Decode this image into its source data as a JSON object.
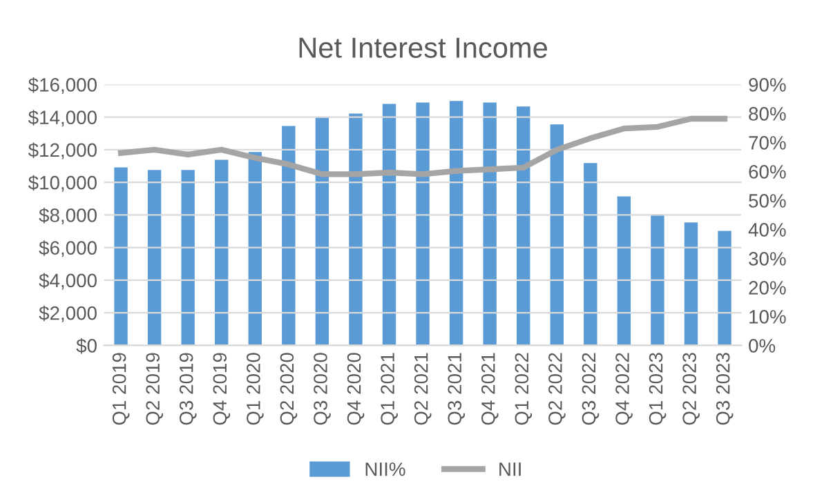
{
  "chart_data": {
    "type": "bar",
    "title": "Net Interest Income",
    "categories": [
      "Q1 2019",
      "Q2 2019",
      "Q3 2019",
      "Q4 2019",
      "Q1 2020",
      "Q2 2020",
      "Q3 2020",
      "Q4 2020",
      "Q1 2021",
      "Q2 2021",
      "Q3 2021",
      "Q4 2021",
      "Q1 2022",
      "Q2 2022",
      "Q3 2022",
      "Q4 2022",
      "Q1 2023",
      "Q2 2023",
      "Q3 2023"
    ],
    "series": [
      {
        "name": "NII%",
        "axis": "y2",
        "color": "#5b9bd5",
        "values": [
          61.4,
          60.5,
          60.5,
          64,
          66.7,
          75.7,
          78.6,
          80,
          83.3,
          83.8,
          84.3,
          83.8,
          82.4,
          76.2,
          62.9,
          51.4,
          45.2,
          42.4,
          39.5
        ]
      },
      {
        "name": "NII",
        "type": "line",
        "axis": "y",
        "color": "#a5a5a5",
        "values": [
          11800,
          12000,
          11700,
          12000,
          11500,
          11100,
          10500,
          10500,
          10600,
          10500,
          10700,
          10800,
          10900,
          12000,
          12700,
          13300,
          13400,
          13900,
          13900
        ]
      }
    ],
    "ylim": [
      0,
      16000
    ],
    "yticks": [
      {
        "value": 0,
        "label": "$0"
      },
      {
        "value": 2000,
        "label": "$2,000"
      },
      {
        "value": 4000,
        "label": "$4,000"
      },
      {
        "value": 6000,
        "label": "$6,000"
      },
      {
        "value": 8000,
        "label": "$8,000"
      },
      {
        "value": 10000,
        "label": "$10,000"
      },
      {
        "value": 12000,
        "label": "$12,000"
      },
      {
        "value": 14000,
        "label": "$14,000"
      },
      {
        "value": 16000,
        "label": "$16,000"
      }
    ],
    "y2lim": [
      0,
      90
    ],
    "y2ticks": [
      {
        "value": 0,
        "label": "0%"
      },
      {
        "value": 10,
        "label": "10%"
      },
      {
        "value": 20,
        "label": "20%"
      },
      {
        "value": 30,
        "label": "30%"
      },
      {
        "value": 40,
        "label": "40%"
      },
      {
        "value": 50,
        "label": "50%"
      },
      {
        "value": 60,
        "label": "60%"
      },
      {
        "value": 70,
        "label": "70%"
      },
      {
        "value": 80,
        "label": "80%"
      },
      {
        "value": 90,
        "label": "90%"
      }
    ],
    "grid": "y",
    "legend": "bottom"
  }
}
